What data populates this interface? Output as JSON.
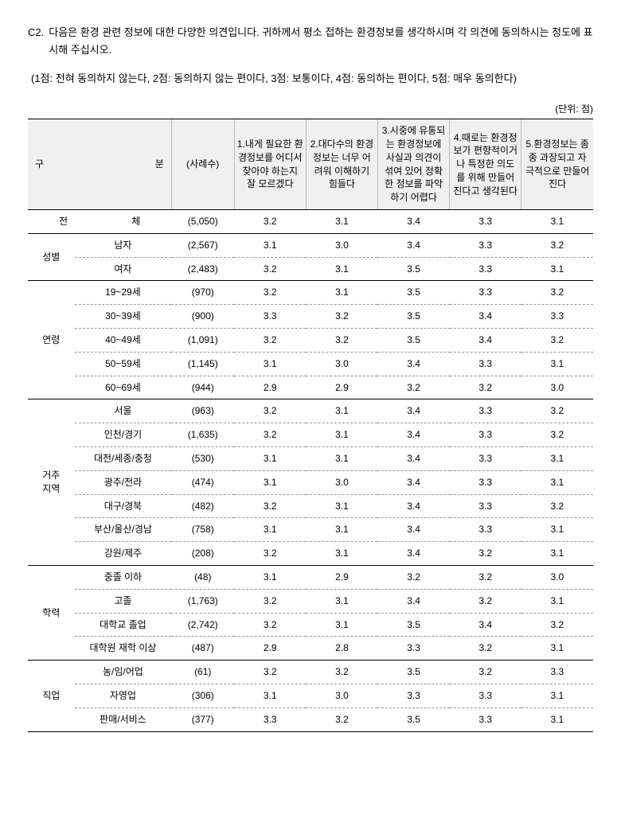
{
  "question": {
    "number": "C2.",
    "text": "다음은 환경 관련 정보에 대한 다양한 의견입니다. 귀하께서 평소 접하는 환경정보를 생각하시며 각 의견에 동의하시는 정도에 표시해 주십시오."
  },
  "scale": "(1점: 전혀 동의하지 않는다, 2점: 동의하지 않는 편이다, 3점: 보통이다, 4점: 동의하는 편이다, 5점: 매우 동의한다)",
  "unit": "(단위: 점)",
  "headers": {
    "gubun": "구        분",
    "n": "(사례수)",
    "c1": "1.내게 필요한 환경정보를 어디서 찾아야 하는지 잘 모르겠다",
    "c2": "2.대다수의 환경정보는 너무 어려워 이해하기 힘들다",
    "c3": "3.시중에 유통되는 환경정보에 사실과 의견이 섞여 있어 정확한 정보를 파악하기 어렵다",
    "c4": "4.때로는 환경정보가 편향적이거나 특정한 의도를 위해 만들어진다고 생각된다",
    "c5": "5.환경정보는 종종 과장되고 자극적으로 만들어진다"
  },
  "total": {
    "label": "전        체",
    "n": "(5,050)",
    "v": [
      "3.2",
      "3.1",
      "3.4",
      "3.3",
      "3.1"
    ]
  },
  "groups": [
    {
      "cat": "성별",
      "rows": [
        {
          "sub": "남자",
          "n": "(2,567)",
          "v": [
            "3.1",
            "3.0",
            "3.4",
            "3.3",
            "3.2"
          ]
        },
        {
          "sub": "여자",
          "n": "(2,483)",
          "v": [
            "3.2",
            "3.1",
            "3.5",
            "3.3",
            "3.1"
          ]
        }
      ]
    },
    {
      "cat": "연령",
      "rows": [
        {
          "sub": "19~29세",
          "n": "(970)",
          "v": [
            "3.2",
            "3.1",
            "3.5",
            "3.3",
            "3.2"
          ]
        },
        {
          "sub": "30~39세",
          "n": "(900)",
          "v": [
            "3.3",
            "3.2",
            "3.5",
            "3.4",
            "3.3"
          ]
        },
        {
          "sub": "40~49세",
          "n": "(1,091)",
          "v": [
            "3.2",
            "3.2",
            "3.5",
            "3.4",
            "3.2"
          ]
        },
        {
          "sub": "50~59세",
          "n": "(1,145)",
          "v": [
            "3.1",
            "3.0",
            "3.4",
            "3.3",
            "3.1"
          ]
        },
        {
          "sub": "60~69세",
          "n": "(944)",
          "v": [
            "2.9",
            "2.9",
            "3.2",
            "3.2",
            "3.0"
          ]
        }
      ]
    },
    {
      "cat": "거주\n지역",
      "rows": [
        {
          "sub": "서울",
          "n": "(963)",
          "v": [
            "3.2",
            "3.1",
            "3.4",
            "3.3",
            "3.2"
          ]
        },
        {
          "sub": "인천/경기",
          "n": "(1,635)",
          "v": [
            "3.2",
            "3.1",
            "3.4",
            "3.3",
            "3.2"
          ]
        },
        {
          "sub": "대전/세종/충청",
          "n": "(530)",
          "v": [
            "3.1",
            "3.1",
            "3.4",
            "3.3",
            "3.1"
          ]
        },
        {
          "sub": "광주/전라",
          "n": "(474)",
          "v": [
            "3.1",
            "3.0",
            "3.4",
            "3.3",
            "3.1"
          ]
        },
        {
          "sub": "대구/경북",
          "n": "(482)",
          "v": [
            "3.2",
            "3.1",
            "3.4",
            "3.3",
            "3.2"
          ]
        },
        {
          "sub": "부산/울산/경남",
          "n": "(758)",
          "v": [
            "3.1",
            "3.1",
            "3.4",
            "3.3",
            "3.1"
          ]
        },
        {
          "sub": "강원/제주",
          "n": "(208)",
          "v": [
            "3.2",
            "3.1",
            "3.4",
            "3.2",
            "3.1"
          ]
        }
      ]
    },
    {
      "cat": "학력",
      "rows": [
        {
          "sub": "중졸 이하",
          "n": "(48)",
          "v": [
            "3.1",
            "2.9",
            "3.2",
            "3.2",
            "3.0"
          ]
        },
        {
          "sub": "고졸",
          "n": "(1,763)",
          "v": [
            "3.2",
            "3.1",
            "3.4",
            "3.2",
            "3.1"
          ]
        },
        {
          "sub": "대학교 졸업",
          "n": "(2,742)",
          "v": [
            "3.2",
            "3.1",
            "3.5",
            "3.4",
            "3.2"
          ]
        },
        {
          "sub": "대학원 재학 이상",
          "n": "(487)",
          "v": [
            "2.9",
            "2.8",
            "3.3",
            "3.2",
            "3.1"
          ]
        }
      ]
    },
    {
      "cat": "직업",
      "rows": [
        {
          "sub": "농/임/어업",
          "n": "(61)",
          "v": [
            "3.2",
            "3.2",
            "3.5",
            "3.2",
            "3.3"
          ]
        },
        {
          "sub": "자영업",
          "n": "(306)",
          "v": [
            "3.1",
            "3.0",
            "3.3",
            "3.3",
            "3.1"
          ]
        },
        {
          "sub": "판매/서비스",
          "n": "(377)",
          "v": [
            "3.3",
            "3.2",
            "3.5",
            "3.3",
            "3.1"
          ]
        }
      ]
    }
  ]
}
